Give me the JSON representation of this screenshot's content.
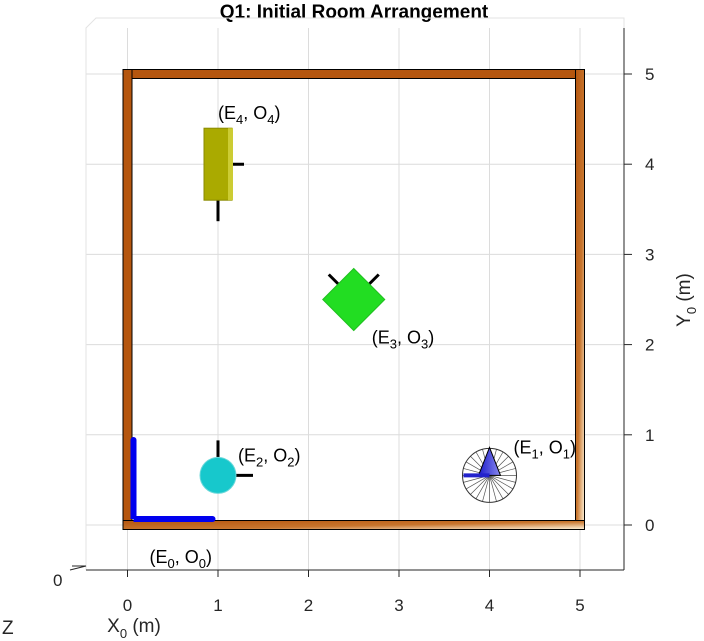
{
  "chart_data": {
    "type": "scatter",
    "title": "Q1: Initial Room Arrangement",
    "xlabel": "X",
    "xlabel_sub": "0",
    "xlabel_unit": " (m)",
    "ylabel": "Y",
    "ylabel_sub": "0",
    "ylabel_unit": " (m)",
    "zlabel": "Z",
    "z_tick": "0",
    "xlim": [
      -0.45,
      5.45
    ],
    "ylim": [
      -0.55,
      5.45
    ],
    "x_ticks": [
      0,
      1,
      2,
      3,
      4,
      5
    ],
    "y_ticks": [
      0,
      1,
      2,
      3,
      4,
      5
    ],
    "grid": true,
    "room": {
      "xmin": 0,
      "xmax": 5,
      "ymin": 0,
      "ymax": 5,
      "wall_color": "#b5560f"
    },
    "objects": [
      {
        "id": "E0",
        "frame": "E",
        "frame_sub": "0",
        "obj": "O",
        "obj_sub": "0",
        "x": 0,
        "y": 0,
        "shape": "origin-frame",
        "color": "#0000ee"
      },
      {
        "id": "E1",
        "frame": "E",
        "frame_sub": "1",
        "obj": "O",
        "obj_sub": "1",
        "x": 4,
        "y": 0.55,
        "shape": "cone",
        "color": "#2222cc"
      },
      {
        "id": "E2",
        "frame": "E",
        "frame_sub": "2",
        "obj": "O",
        "obj_sub": "2",
        "x": 1,
        "y": 0.55,
        "shape": "sphere",
        "color": "#17c8cc"
      },
      {
        "id": "E3",
        "frame": "E",
        "frame_sub": "3",
        "obj": "O",
        "obj_sub": "3",
        "x": 2.5,
        "y": 2.5,
        "shape": "diamond",
        "color": "#22dd22"
      },
      {
        "id": "E4",
        "frame": "E",
        "frame_sub": "4",
        "obj": "O",
        "obj_sub": "4",
        "x": 1,
        "y": 4,
        "shape": "rectangle",
        "color": "#aaaa00"
      }
    ]
  }
}
